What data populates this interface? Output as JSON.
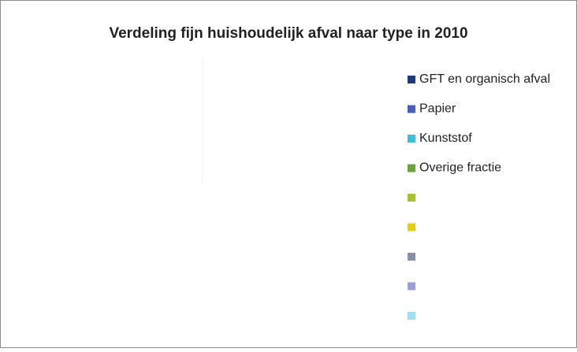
{
  "chart_data": {
    "type": "pie",
    "title": "Verdeling fijn huishoudelijk afval naar type in 2010",
    "categories": [
      "GFT en organisch afval",
      "Papier",
      "Kunststof",
      "Overige fractie",
      null,
      null,
      null,
      null,
      null
    ],
    "values": [
      0,
      0,
      0,
      0,
      0,
      0,
      0,
      0,
      0
    ],
    "colors": [
      "#1f3a7a",
      "#4a5fb8",
      "#3fbcd8",
      "#6aa53a",
      "#a8c232",
      "#e0cf1a",
      "#8a8fa8",
      "#9b9fd8",
      "#9de0f5"
    ],
    "legend": "right"
  }
}
